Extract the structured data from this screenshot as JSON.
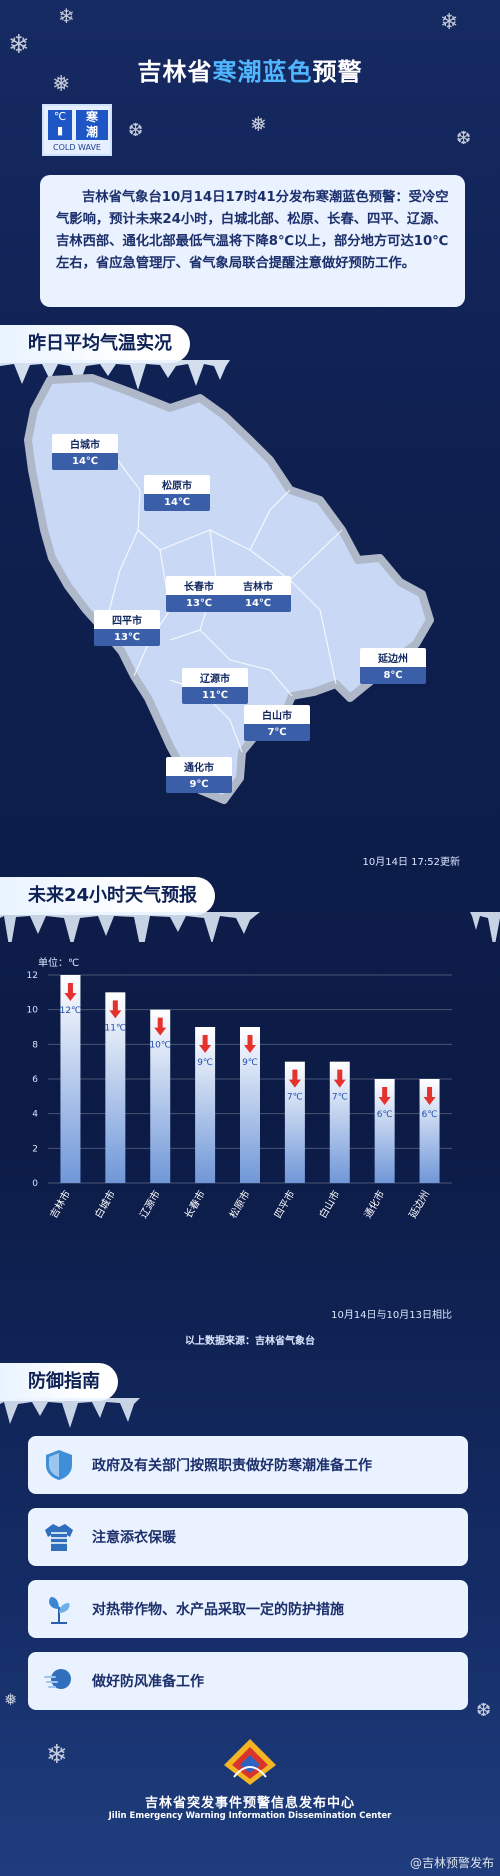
{
  "header": {
    "title_prefix": "吉林省",
    "title_highlight": "寒潮蓝色",
    "title_suffix": "预警"
  },
  "badge": {
    "sym": "℃",
    "cn_top": "寒",
    "cn_bot": "潮",
    "en": "COLD WAVE"
  },
  "notice": "吉林省气象台10月14日17时41分发布寒潮蓝色预警：受冷空气影响，预计未来24小时，白城北部、松原、长春、四平、辽源、吉林西部、通化北部最低气温将下降8℃以上，部分地方可达10℃左右，省应急管理厅、省气象局联合提醒注意做好预防工作。",
  "sections": {
    "yesterday": "昨日平均气温实况",
    "forecast": "未来24小时天气预报",
    "guide": "防御指南"
  },
  "map": {
    "cities": [
      {
        "name": "白城市",
        "temp": "14℃"
      },
      {
        "name": "松原市",
        "temp": "14℃"
      },
      {
        "name": "长春市",
        "temp": "13℃"
      },
      {
        "name": "吉林市",
        "temp": "14℃"
      },
      {
        "name": "四平市",
        "temp": "13℃"
      },
      {
        "name": "延边州",
        "temp": "8℃"
      },
      {
        "name": "辽源市",
        "temp": "11℃"
      },
      {
        "name": "白山市",
        "temp": "7℃"
      },
      {
        "name": "通化市",
        "temp": "9℃"
      }
    ],
    "update": "10月14日  17:52更新"
  },
  "chart_data": {
    "type": "bar",
    "unit_label": "单位：℃",
    "categories": [
      "吉林市",
      "白城市",
      "辽源市",
      "长春市",
      "松原市",
      "四平市",
      "白山市",
      "通化市",
      "延边州"
    ],
    "values": [
      12,
      11,
      10,
      9,
      9,
      7,
      7,
      6,
      6
    ],
    "value_labels": [
      "12℃",
      "11℃",
      "10℃",
      "9℃",
      "9℃",
      "7℃",
      "7℃",
      "6℃",
      "6℃"
    ],
    "ylim": [
      0,
      12
    ],
    "yticks": [
      0,
      2,
      4,
      6,
      8,
      10,
      12
    ],
    "grid": true,
    "note": "10月14日与10月13日相比",
    "colors": {
      "bar_top": "#ffffff",
      "bar_bottom": "#6f97d8",
      "arrow": "#e5322d",
      "label": "#1f4fb0"
    }
  },
  "source": "以上数据来源：吉林省气象台",
  "guide": [
    {
      "icon": "shield-icon",
      "text": "政府及有关部门按照职责做好防寒潮准备工作"
    },
    {
      "icon": "coat-icon",
      "text": "注意添衣保暖"
    },
    {
      "icon": "plant-icon",
      "text": "对热带作物、水产品采取一定的防护措施"
    },
    {
      "icon": "wind-icon",
      "text": "做好防风准备工作"
    }
  ],
  "footer": {
    "cn": "吉林省突发事件预警信息发布中心",
    "en": "Jilin Emergency Warning Information Dissemination Center",
    "watermark": "@吉林预警发布"
  },
  "colors": {
    "accent": "#4fb6ff",
    "bg": "#0f2050",
    "card": "#eaf1ff",
    "map_fill": "#c9d9f5",
    "map_edge": "#aeb8c8"
  }
}
